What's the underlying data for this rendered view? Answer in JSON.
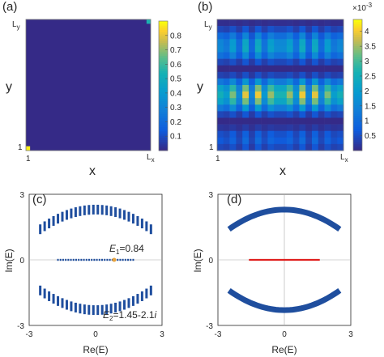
{
  "colors": {
    "low": "#352a87",
    "mid": "#21a6d4",
    "high": "#f9fb0e",
    "blue_marker": "#1f4e9e",
    "red_line": "#e0201f",
    "orange": "#e8a23a"
  },
  "chart_data": [
    {
      "panel": "(a)",
      "type": "heatmap",
      "xlabel": "x",
      "ylabel": "y",
      "xticks": [
        "1",
        "L",
        "x"
      ],
      "yticks": [
        "1",
        "L",
        "y"
      ],
      "grid_size": 30,
      "background_value": 0.0,
      "hot_cells": [
        {
          "row": "bottom-left",
          "value": 0.88
        },
        {
          "row": "top-right",
          "value": 0.55
        }
      ],
      "colorbar": {
        "ticks": [
          "0.1",
          "0.2",
          "0.3",
          "0.4",
          "0.5",
          "0.6",
          "0.7",
          "0.8"
        ],
        "range": [
          0,
          0.9
        ]
      }
    },
    {
      "panel": "(b)",
      "type": "heatmap",
      "xlabel": "x",
      "ylabel": "y",
      "xticks": [
        "1",
        "L",
        "x"
      ],
      "yticks": [
        "1",
        "L",
        "y"
      ],
      "grid_size": 20,
      "colorbar": {
        "ticks": [
          "0.5",
          "1",
          "1.5",
          "2",
          "2.5",
          "3",
          "3.5",
          "4"
        ],
        "range": [
          0,
          4.4
        ],
        "exponent": "×10",
        "exponent_power": "-3"
      }
    },
    {
      "panel": "(c)",
      "type": "scatter",
      "xlabel": "Re(E)",
      "ylabel": "Im(E)",
      "xlim": [
        -3,
        3
      ],
      "ylim": [
        -3,
        3
      ],
      "xticks": [
        "-3",
        "0",
        "3"
      ],
      "yticks": [
        "-3",
        "0",
        "3"
      ],
      "upper_arc": {
        "x_range": [
          -2.5,
          2.5
        ],
        "y_center": 2.3,
        "y_edge": 1.4
      },
      "lower_arc": {
        "x_range": [
          -2.5,
          2.5
        ],
        "y_center": -2.3,
        "y_edge": -1.4
      },
      "real_line": {
        "x_range": [
          -1.7,
          1.7
        ],
        "y": 0
      },
      "annotations": {
        "e1": {
          "sym": "E",
          "sub": "1",
          "rest": "=0.84"
        },
        "e2": {
          "sym": "E",
          "sub": "2",
          "rest": "=1.45-2.1",
          "imag": "i"
        }
      },
      "highlight_point": {
        "x": 0.84,
        "y": 0
      }
    },
    {
      "panel": "(d)",
      "type": "line",
      "xlabel": "Re(E)",
      "ylabel": "Im(E)",
      "xlim": [
        -3,
        3
      ],
      "ylim": [
        -3,
        3
      ],
      "xticks": [
        "-3",
        "0",
        "3"
      ],
      "yticks": [
        "-3",
        "0",
        "3"
      ],
      "upper_arc": {
        "x_range": [
          -2.5,
          2.5
        ],
        "y_center": 2.3,
        "y_edge": 1.4
      },
      "lower_arc": {
        "x_range": [
          -2.5,
          2.5
        ],
        "y_center": -2.3,
        "y_edge": -1.4
      },
      "real_segment": {
        "x_range": [
          -1.6,
          1.6
        ],
        "y": 0
      }
    }
  ]
}
